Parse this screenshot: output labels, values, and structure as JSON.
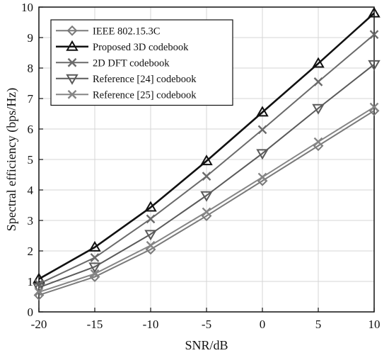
{
  "chart_data": {
    "type": "line",
    "xlabel": "SNR/dB",
    "ylabel": "Spectral efficiency (bps/Hz)",
    "x": [
      -20,
      -15,
      -10,
      -5,
      0,
      5,
      10
    ],
    "xlim": [
      -20,
      10
    ],
    "ylim": [
      0,
      10
    ],
    "xticks": [
      -20,
      -15,
      -10,
      -5,
      0,
      5,
      10
    ],
    "yticks": [
      0,
      1,
      2,
      3,
      4,
      5,
      6,
      7,
      8,
      9,
      10
    ],
    "grid": true,
    "legend_position": "top-left",
    "series": [
      {
        "name": "IEEE 802.15.3C",
        "values": [
          0.55,
          1.15,
          2.05,
          3.15,
          4.3,
          5.45,
          6.6
        ],
        "marker": "diamond",
        "color": "#7a7a7a",
        "width": 2
      },
      {
        "name": "Proposed 3D codebook",
        "values": [
          1.08,
          2.12,
          3.43,
          4.95,
          6.55,
          8.15,
          9.8
        ],
        "marker": "triangle-up",
        "color": "#111111",
        "width": 2.6
      },
      {
        "name": "2D DFT codebook",
        "values": [
          0.92,
          1.78,
          3.05,
          4.45,
          5.98,
          7.55,
          9.1
        ],
        "marker": "x",
        "color": "#6a6a6a",
        "width": 2
      },
      {
        "name": "Reference [24] codebook",
        "values": [
          0.8,
          1.48,
          2.55,
          3.82,
          5.2,
          6.68,
          8.12
        ],
        "marker": "triangle-down",
        "color": "#5a5a5a",
        "width": 2
      },
      {
        "name": "Reference [25] codebook",
        "values": [
          0.65,
          1.25,
          2.18,
          3.28,
          4.42,
          5.58,
          6.72
        ],
        "marker": "x",
        "color": "#858585",
        "width": 2
      }
    ]
  }
}
